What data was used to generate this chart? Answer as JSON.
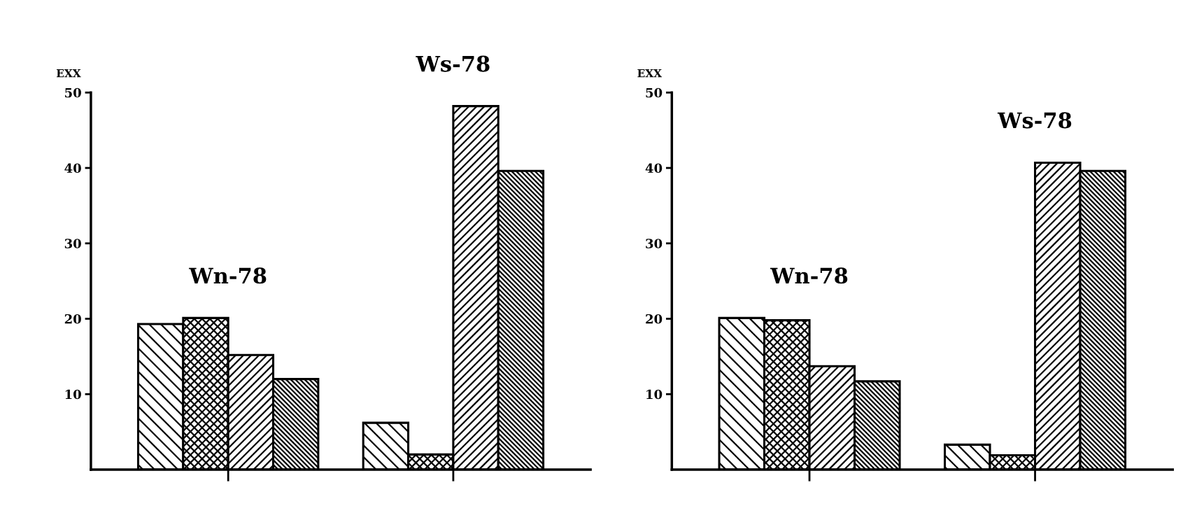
{
  "chart_data": [
    {
      "type": "bar",
      "ylabel": "EXX",
      "categories": [
        null,
        null
      ],
      "ylim": [
        0,
        50
      ],
      "yticks": [
        10,
        20,
        30,
        40,
        50
      ],
      "grid": false,
      "series": [
        {
          "color": "#000000",
          "values": [
            19.3,
            6.2
          ]
        },
        {
          "color": "#000000",
          "values": [
            20.1,
            2.0
          ]
        },
        {
          "color": "#000000",
          "values": [
            15.2,
            48.2
          ]
        },
        {
          "color": "#000000",
          "values": [
            12.0,
            39.6
          ]
        }
      ],
      "annotations": [
        "Wn-78",
        "Ws-78"
      ]
    },
    {
      "type": "bar",
      "ylabel": "EXX",
      "categories": [
        null,
        null
      ],
      "ylim": [
        0,
        50
      ],
      "yticks": [
        10,
        20,
        30,
        40,
        50
      ],
      "grid": false,
      "series": [
        {
          "color": "#000000",
          "values": [
            20.1,
            3.3
          ]
        },
        {
          "color": "#000000",
          "values": [
            19.8,
            1.9
          ]
        },
        {
          "color": "#000000",
          "values": [
            13.7,
            40.7
          ]
        },
        {
          "color": "#000000",
          "values": [
            11.7,
            39.6
          ]
        }
      ],
      "annotations": [
        "Wn-78",
        "Ws-78"
      ]
    }
  ]
}
